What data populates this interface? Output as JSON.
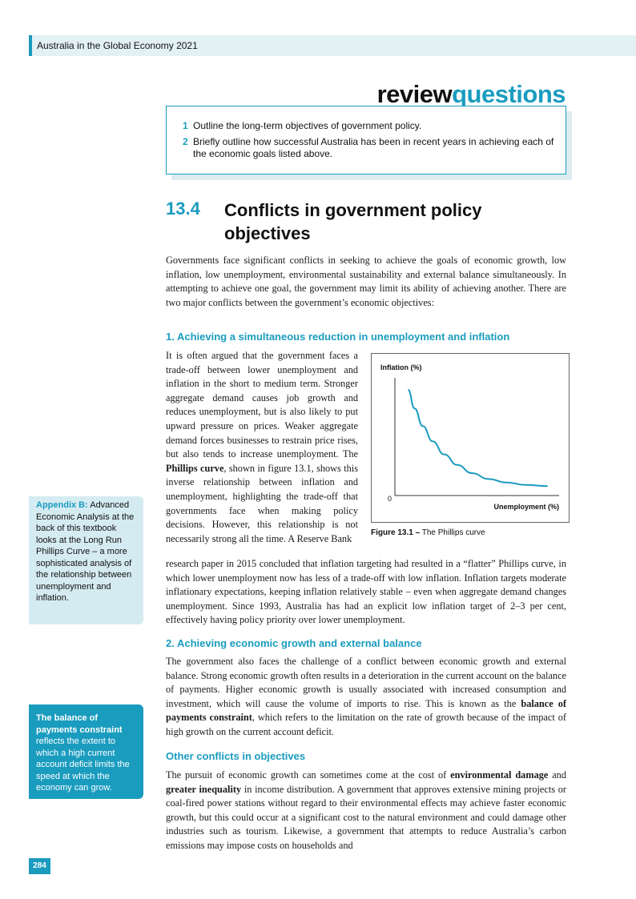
{
  "header": {
    "running_title": "Australia in the Global Economy 2021"
  },
  "review": {
    "title_a": "review",
    "title_b": "questions",
    "items": [
      {
        "num": "1",
        "text": "Outline the long-term objectives of government policy."
      },
      {
        "num": "2",
        "text": "Briefly outline how successful Australia has been in recent years in achieving each of the economic goals listed above."
      }
    ]
  },
  "section": {
    "number": "13.4",
    "title": "Conflicts in government policy objectives",
    "intro": "Governments face significant conflicts in seeking to achieve the goals of economic growth, low inflation, low unemployment, environmental sustainability and external balance simultaneously. In attempting to achieve one goal, the government may limit its ability of achieving another. There are two major conflicts between the government’s economic objectives:"
  },
  "sub1": {
    "heading": "1. Achieving a simultaneous reduction in unemployment and inflation",
    "p_a": "It is often argued that the government faces a trade-off between lower unemployment and inflation in the short to medium term. Stronger aggregate demand causes job growth and reduces unemployment, but is also likely to put upward pressure on prices. Weaker aggregate demand forces businesses to restrain price rises, but also tends to increase unemployment. The ",
    "b1": "Phillips curve",
    "p_b": ", shown in figure 13.1, shows this inverse relationship between inflation and unemployment, highlighting the trade-off that governments face when making policy decisions. However, this relationship is not necessarily strong all the time. A Reserve Bank",
    "p_c": "research paper in 2015 concluded that inflation targeting had resulted in a “flatter” Phillips curve, in which lower unemployment now has less of a trade-off with low inflation. Inflation targets moderate inflationary expectations, keeping inflation relatively stable – even when aggregate demand changes unemployment. Since 1993, Australia has had an explicit low inflation target of 2–3 per cent, effectively having policy priority over lower unemployment."
  },
  "figure": {
    "y_label": "Inflation (%)",
    "x_label": "Unemployment (%)",
    "origin": "0",
    "caption_num": "Figure 13.1 –",
    "caption_text": "The Phillips curve"
  },
  "chart_data": {
    "type": "line",
    "title": "",
    "xlabel": "Unemployment (%)",
    "ylabel": "Inflation (%)",
    "xlim": [
      0,
      10
    ],
    "ylim": [
      0,
      10
    ],
    "grid": false,
    "series": [
      {
        "x": [
          0.8,
          1.2,
          1.7,
          2.3,
          3.0,
          3.8,
          4.7,
          5.7,
          6.8,
          8.0,
          9.3
        ],
        "y": [
          9.0,
          7.4,
          5.9,
          4.6,
          3.5,
          2.6,
          1.9,
          1.4,
          1.1,
          0.9,
          0.8
        ]
      }
    ]
  },
  "sidebar1": {
    "key": "Appendix B:",
    "text": " Advanced Economic Analysis at the back of this textbook looks at the Long Run Phillips Curve – a more sophisticated analysis of the relationship between unemployment and inflation."
  },
  "sidebar2": {
    "key": "The balance of payments constraint",
    "text": " reflects the extent to which a high current account deficit limits the speed at which the economy can grow."
  },
  "sub2": {
    "heading": "2. Achieving economic growth and external balance",
    "p_a": "The government also faces the challenge of a conflict between economic growth and external balance. Strong economic growth often results in a deterioration in the current account on the balance of payments. Higher economic growth is usually associated with increased consumption and investment, which will cause the volume of imports to rise. This is known as the ",
    "b1": "balance of payments constraint",
    "p_b": ", which refers to the limitation on the rate of growth because of the impact of high growth on the current account deficit."
  },
  "sub3": {
    "heading": "Other conflicts in objectives",
    "p_a": "The pursuit of economic growth can sometimes come at the cost of ",
    "b1": "environmental damage",
    "p_b": " and ",
    "b2": "greater inequality",
    "p_c": " in income distribution. A government that approves extensive mining projects or coal-fired power stations without regard to their environmental effects may achieve faster economic growth, but this could occur at a significant cost to the natural environment and could damage other industries such as tourism. Likewise, a government that attempts to reduce Australia’s carbon emissions may impose costs on households and"
  },
  "footer": {
    "page_number": "284"
  },
  "colors": {
    "accent": "#1a9cbf",
    "light": "#d5ebf2",
    "header_bg": "#e3f1f5"
  }
}
